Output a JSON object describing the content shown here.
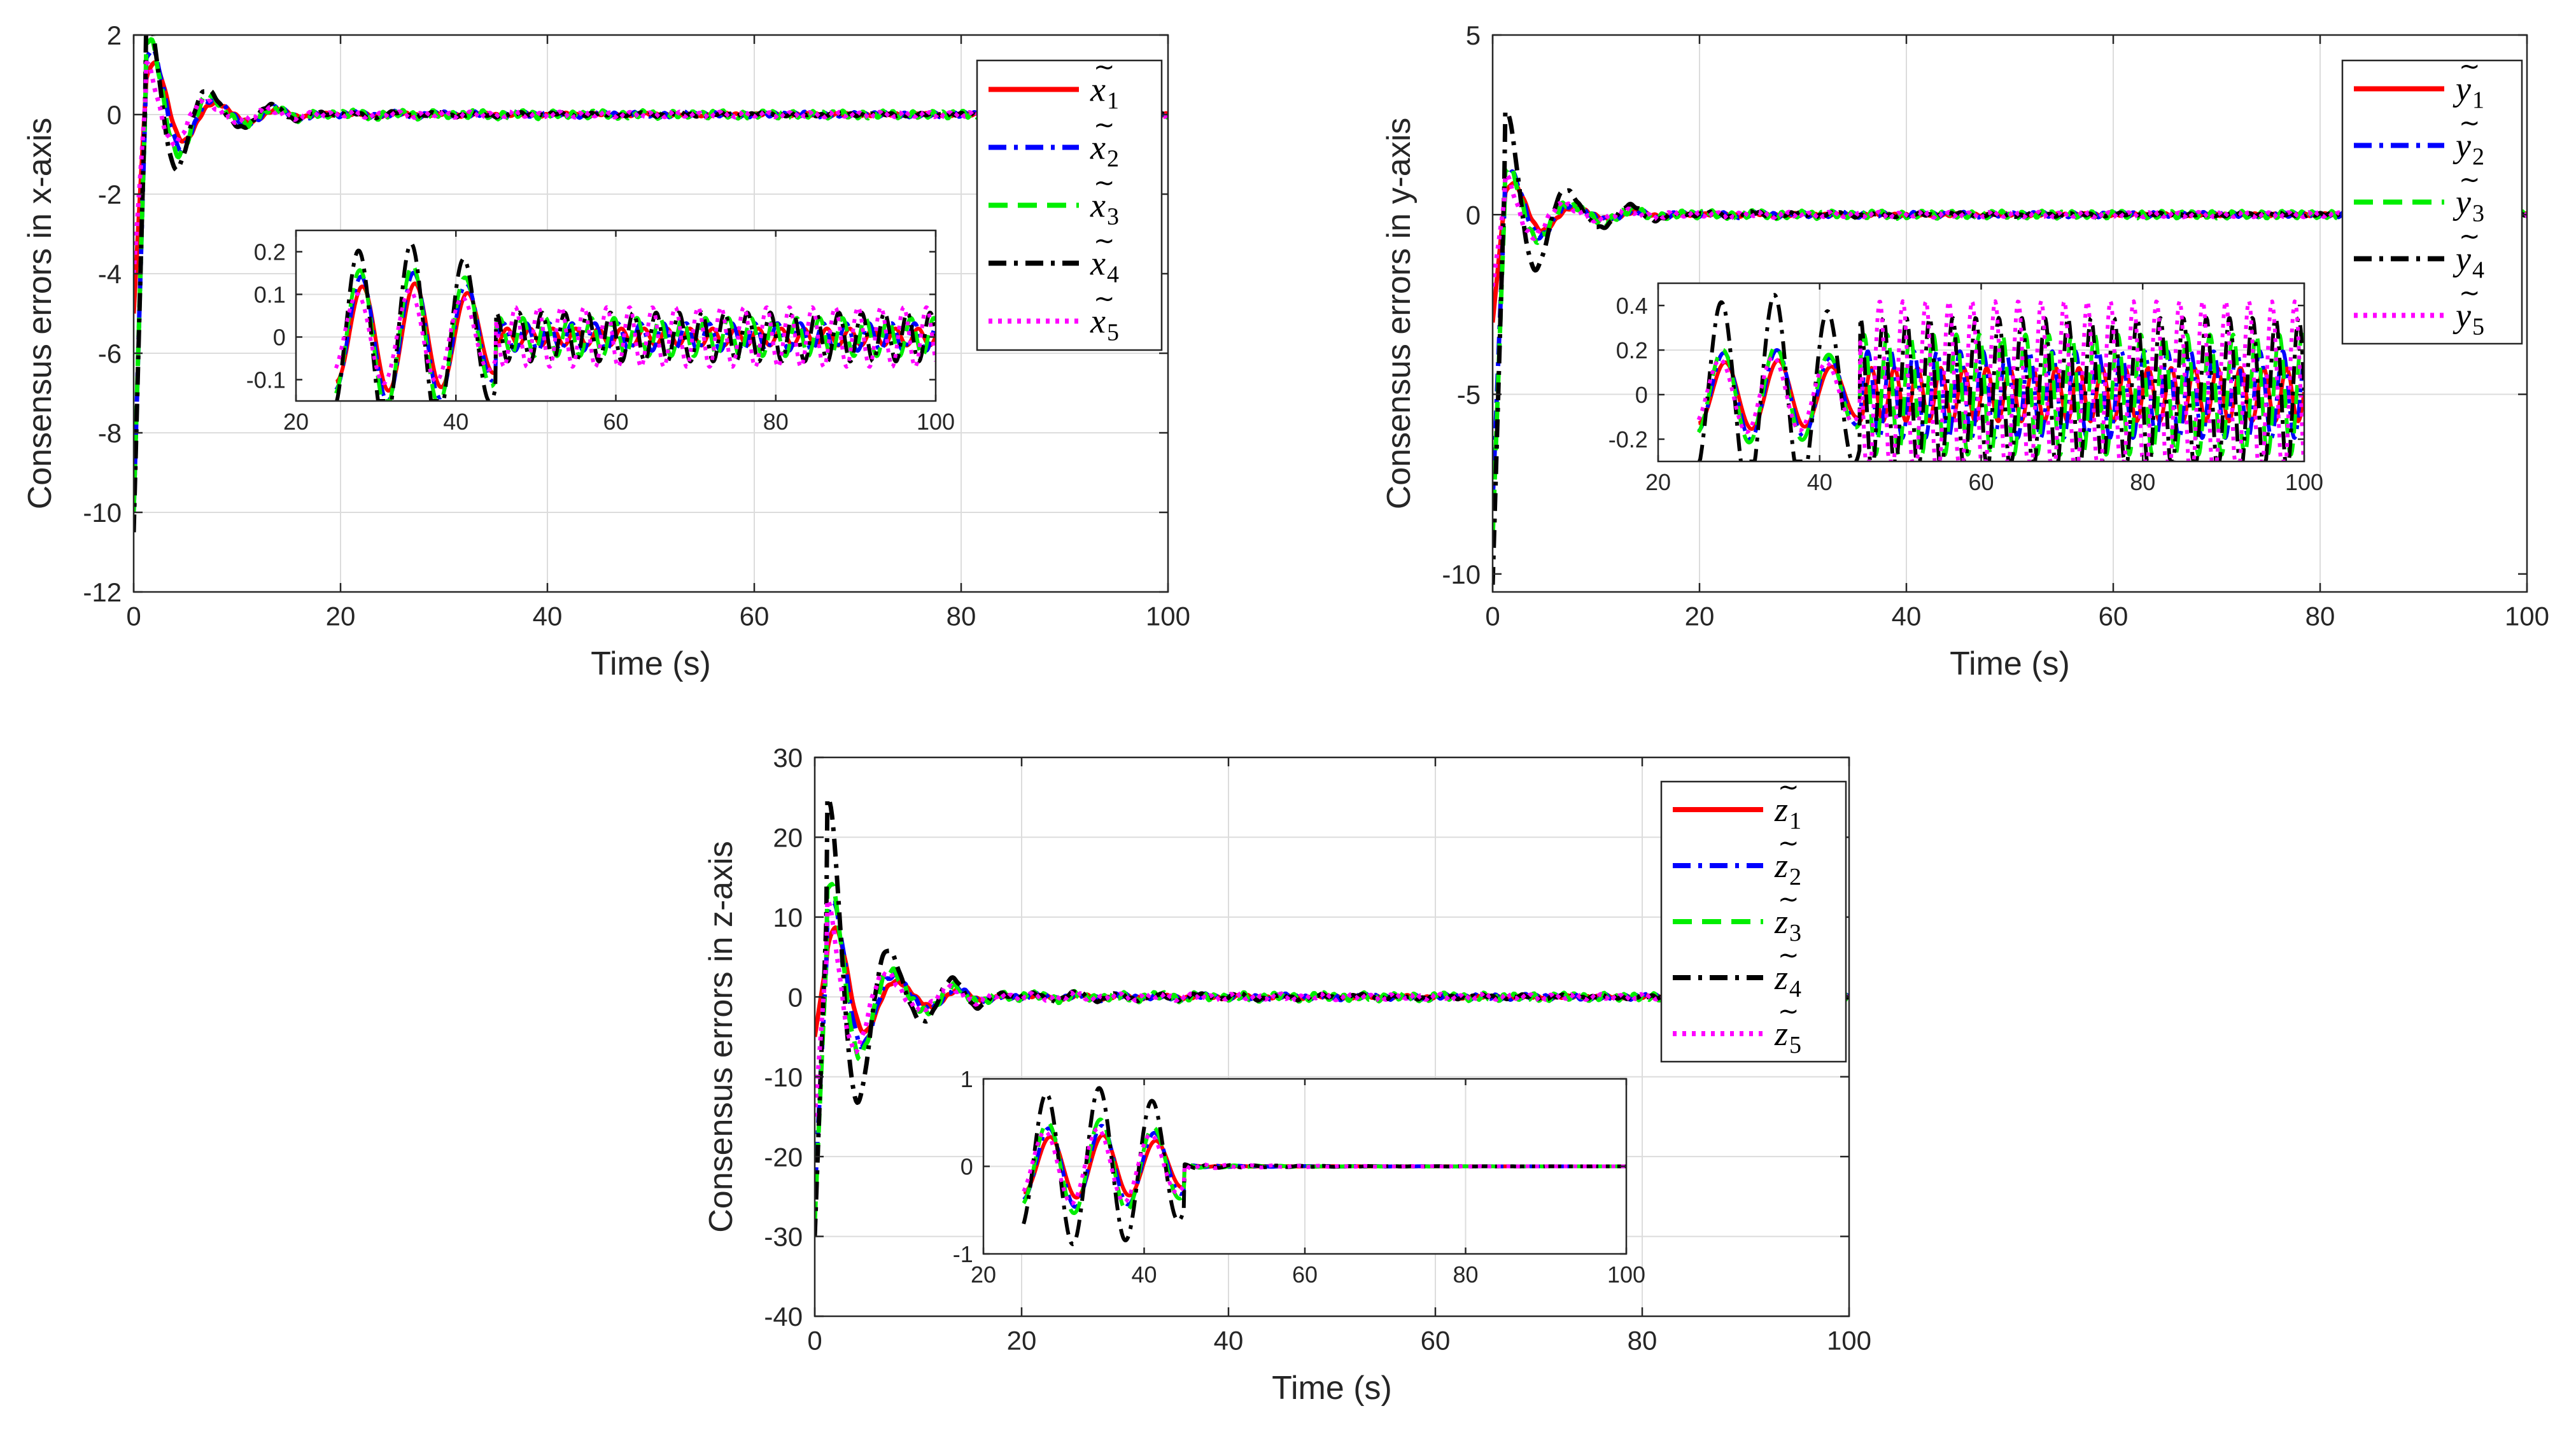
{
  "chart_data": [
    {
      "type": "line",
      "id": "x",
      "xlabel": "Time (s)",
      "ylabel": "Consensus errors in x-axis",
      "xlim": [
        0,
        100
      ],
      "ylim": [
        -12,
        2
      ],
      "xticks": [
        0,
        20,
        40,
        60,
        80,
        100
      ],
      "yticks": [
        -12,
        -10,
        -8,
        -6,
        -4,
        -2,
        0,
        2
      ],
      "grid": true,
      "legend_position": "top-right",
      "legend_base": "x",
      "series": [
        {
          "name": "x̃1",
          "base": "x",
          "sub": "1",
          "color": "#ff0000",
          "dash": "solid",
          "init": -5,
          "amp": 1.5
        },
        {
          "name": "x̃2",
          "base": "x",
          "sub": "2",
          "color": "#0000ff",
          "dash": "dashdot",
          "init": -10,
          "amp": 1.8
        },
        {
          "name": "x̃3",
          "base": "x",
          "sub": "3",
          "color": "#00ee00",
          "dash": "dashed",
          "init": -10,
          "amp": 2.0
        },
        {
          "name": "x̃4",
          "base": "x",
          "sub": "4",
          "color": "#000000",
          "dash": "dashdot",
          "init": -10.5,
          "amp": 2.6
        },
        {
          "name": "x̃5",
          "base": "x",
          "sub": "5",
          "color": "#ff00ff",
          "dash": "dotted",
          "init": -4,
          "amp": 1.3
        }
      ],
      "inset": {
        "xlim": [
          20,
          100
        ],
        "ylim": [
          -0.15,
          0.25
        ],
        "xticks": [
          20,
          40,
          60,
          80,
          100
        ],
        "yticks": [
          -0.1,
          0,
          0.1,
          0.2
        ],
        "ytick_labels": [
          "-0.1",
          "0",
          "0.1",
          "0.2"
        ],
        "peak": 0.22,
        "steady": 0.05
      }
    },
    {
      "type": "line",
      "id": "y",
      "xlabel": "Time (s)",
      "ylabel": "Consensus errors in y-axis",
      "xlim": [
        0,
        100
      ],
      "ylim": [
        -10.5,
        5
      ],
      "xticks": [
        0,
        20,
        40,
        60,
        80,
        100
      ],
      "yticks": [
        -10,
        -5,
        0,
        5
      ],
      "grid": true,
      "legend_position": "top-right",
      "legend_base": "y",
      "series": [
        {
          "name": "ỹ1",
          "base": "y",
          "sub": "1",
          "color": "#ff0000",
          "dash": "solid",
          "init": -3,
          "amp": 1.0
        },
        {
          "name": "ỹ2",
          "base": "y",
          "sub": "2",
          "color": "#0000ff",
          "dash": "dashdot",
          "init": -8,
          "amp": 1.3
        },
        {
          "name": "ỹ3",
          "base": "y",
          "sub": "3",
          "color": "#00ee00",
          "dash": "dashed",
          "init": -9,
          "amp": 1.4
        },
        {
          "name": "ỹ4",
          "base": "y",
          "sub": "4",
          "color": "#000000",
          "dash": "dashdot",
          "init": -10.3,
          "amp": 2.9
        },
        {
          "name": "ỹ5",
          "base": "y",
          "sub": "5",
          "color": "#ff00ff",
          "dash": "dotted",
          "init": -2,
          "amp": 1.1
        }
      ],
      "inset": {
        "xlim": [
          20,
          100
        ],
        "ylim": [
          -0.3,
          0.5
        ],
        "xticks": [
          20,
          40,
          60,
          80,
          100
        ],
        "yticks": [
          -0.2,
          0,
          0.2,
          0.4
        ],
        "ytick_labels": [
          "-0.2",
          "0",
          "0.2",
          "0.4"
        ],
        "peak": 0.45,
        "steady": 0.3
      }
    },
    {
      "type": "line",
      "id": "z",
      "xlabel": "Time (s)",
      "ylabel": "Consensus errors in z-axis",
      "xlim": [
        0,
        100
      ],
      "ylim": [
        -40,
        30
      ],
      "xticks": [
        0,
        20,
        40,
        60,
        80,
        100
      ],
      "yticks": [
        -40,
        -30,
        -20,
        -10,
        0,
        10,
        20,
        30
      ],
      "grid": true,
      "legend_position": "top-right",
      "legend_base": "z",
      "series": [
        {
          "name": "z̃1",
          "base": "z",
          "sub": "1",
          "color": "#ff0000",
          "dash": "solid",
          "init": -5,
          "amp": 10
        },
        {
          "name": "z̃2",
          "base": "z",
          "sub": "2",
          "color": "#0000ff",
          "dash": "dashdot",
          "init": -25,
          "amp": 13
        },
        {
          "name": "z̃3",
          "base": "z",
          "sub": "3",
          "color": "#00ee00",
          "dash": "dashed",
          "init": -28,
          "amp": 15
        },
        {
          "name": "z̃4",
          "base": "z",
          "sub": "4",
          "color": "#000000",
          "dash": "dashdot",
          "init": -30,
          "amp": 25
        },
        {
          "name": "z̃5",
          "base": "z",
          "sub": "5",
          "color": "#ff00ff",
          "dash": "dotted",
          "init": -15,
          "amp": 12
        }
      ],
      "inset": {
        "xlim": [
          20,
          100
        ],
        "ylim": [
          -1,
          1
        ],
        "xticks": [
          20,
          40,
          60,
          80,
          100
        ],
        "yticks": [
          -1,
          0,
          1
        ],
        "ytick_labels": [
          "-1",
          "0",
          "1"
        ],
        "peak": 0.9,
        "steady": 0.02
      }
    }
  ]
}
